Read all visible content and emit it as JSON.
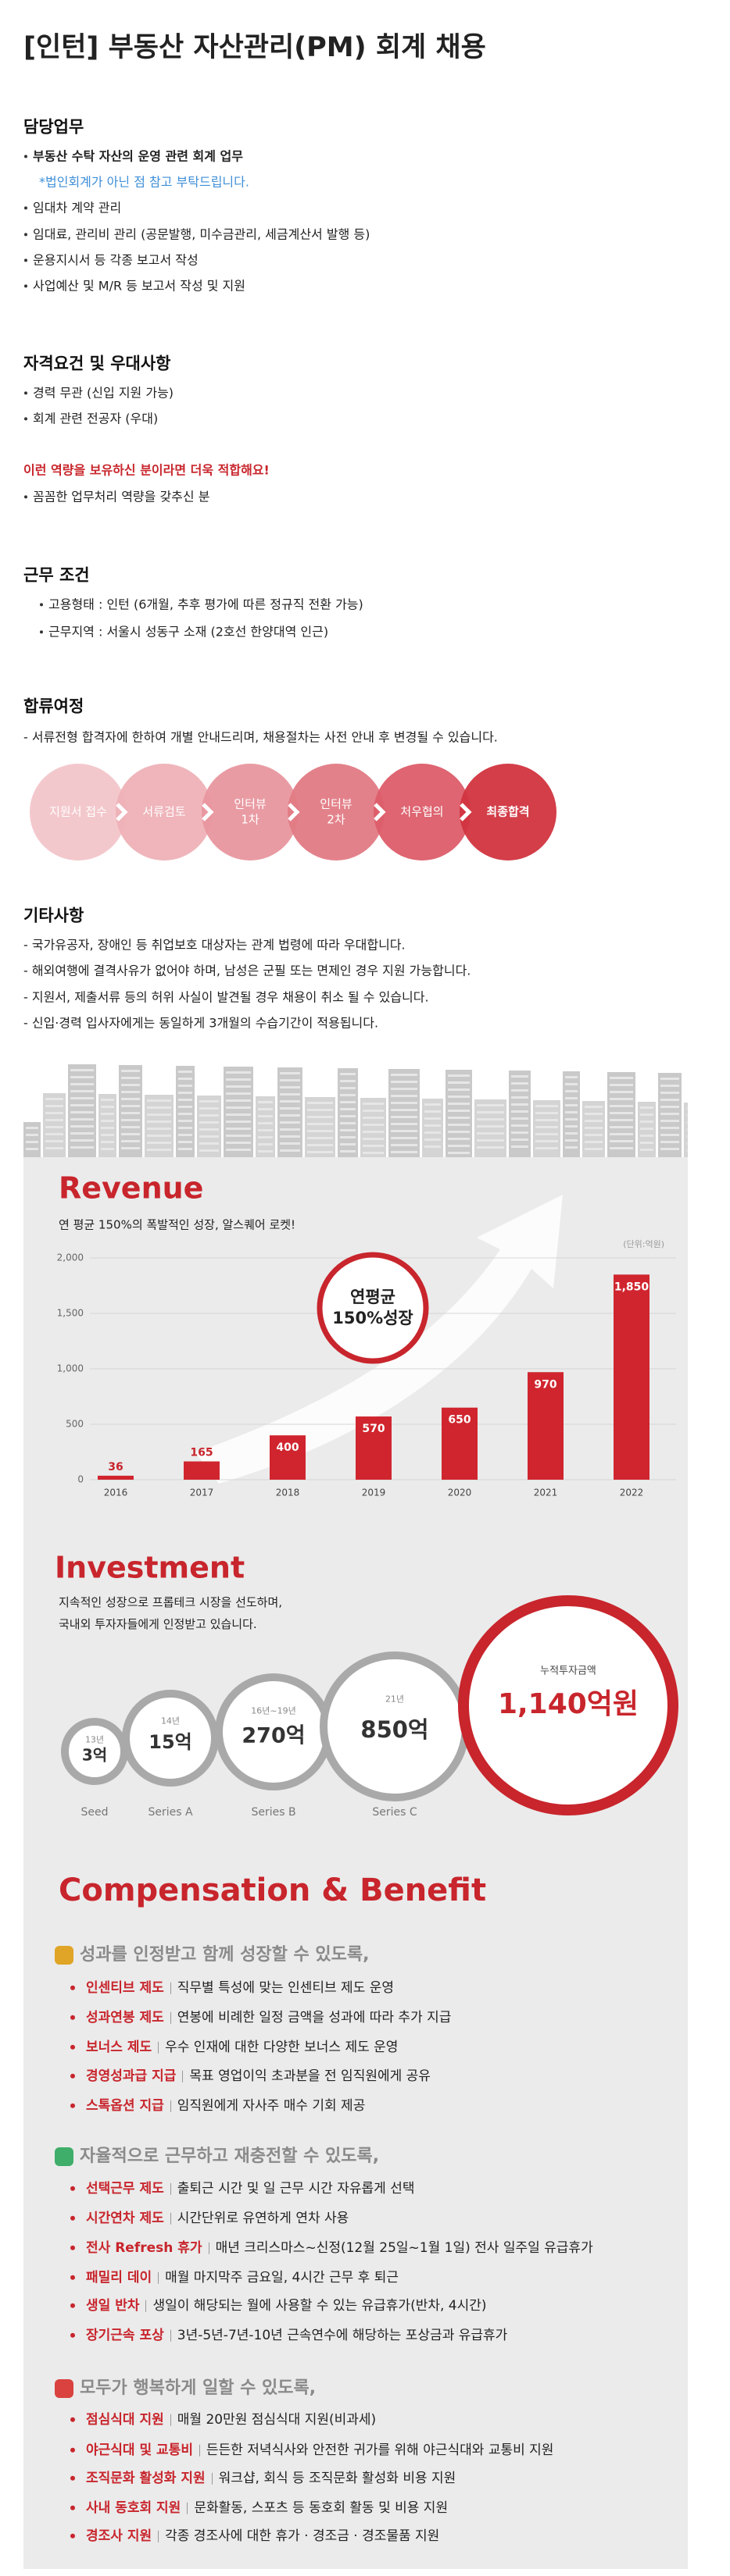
{
  "header": {
    "title": "[인턴] 부동산 자산관리(PM) 회계 채용"
  },
  "duties": {
    "heading": "담당업무",
    "lead": "부동산 수탁 자산의 운영 관련 회계 업무",
    "note": "*법인회계가 아닌 점 참고 부탁드립니다.",
    "items": [
      "임대차 계약 관리",
      "임대료, 관리비 관리 (공문발행, 미수금관리, 세금계산서 발행 등)",
      "운용지시서 등 각종 보고서 작성",
      "사업예산 및 M/R 등 보고서 작성 및 지원"
    ]
  },
  "qualifications": {
    "heading": "자격요건 및 우대사항",
    "items": [
      "경력 무관 (신입 지원 가능)",
      "회계 관련 전공자 (우대)"
    ],
    "highlight": "이런 역량을 보유하신 분이라면 더욱 적합해요!",
    "extra": [
      "꼼꼼한 업무처리 역량을 갖추신 분"
    ]
  },
  "conditions": {
    "heading": "근무 조건",
    "items": [
      "고용형태 : 인턴 (6개월, 추후 평가에 따른 정규직 전환 가능)",
      "근무지역 : 서울시 성동구 소재 (2호선 한양대역 인근)"
    ]
  },
  "process": {
    "heading": "합류여정",
    "text": "- 서류전형 합격자에 한하여 개별 안내드리며, 채용절차는 사전 안내 후 변경될 수 있습니다.",
    "steps": [
      [
        "지원서 접수"
      ],
      [
        "서류검토"
      ],
      [
        "인터뷰",
        "1차"
      ],
      [
        "인터뷰",
        "2차"
      ],
      [
        "처우협의"
      ],
      [
        "최종합격"
      ]
    ]
  },
  "others": {
    "heading": "기타사항",
    "items": [
      "- 국가유공자, 장애인 등 취업보호 대상자는 관계 법령에 따라 우대합니다.",
      "- 해외여행에 결격사유가 없어야 하며, 남성은 군필 또는 면제인 경우 지원 가능합니다.",
      "- 지원서, 제출서류 등의 허위 사실이 발견될 경우 채용이 취소 될 수 있습니다.",
      "- 신입·경력 입사자에게는 동일하게 3개월의 수습기간이 적용됩니다."
    ]
  },
  "chart_data": {
    "type": "bar",
    "title": "Revenue",
    "subtitle": "연 평균 150%의 폭발적인 성장, 알스퀘어 로켓!",
    "unit": "(단위:억원)",
    "annotation": [
      "연평균",
      "150%성장"
    ],
    "categories": [
      "2016",
      "2017",
      "2018",
      "2019",
      "2020",
      "2021",
      "2022"
    ],
    "values": [
      36,
      165,
      400,
      570,
      650,
      970,
      1850
    ],
    "value_labels": [
      "36",
      "165",
      "400",
      "570",
      "650",
      "970",
      "1,850"
    ],
    "color": "#d0252e",
    "ylim": [
      0,
      2000
    ],
    "yticks": [
      0,
      500,
      {
        "value": 1000,
        "label": "1,000"
      },
      {
        "value": 1500,
        "label": "1,500"
      },
      {
        "value": 2000,
        "label": "2,000"
      }
    ],
    "grid": true
  },
  "investment": {
    "title": "Investment",
    "subtitle": [
      "지속적인 성장으로 프롭테크 시장을 선도하며,",
      "국내외 투자자들에게 인정받고 있습니다."
    ],
    "rounds": [
      {
        "year": "13년",
        "amount": "3억",
        "stage": "Seed"
      },
      {
        "year": "14년",
        "amount": "15억",
        "stage": "Series A"
      },
      {
        "year": "16년~19년",
        "amount": "270억",
        "stage": "Series B"
      },
      {
        "year": "21년",
        "amount": "850억",
        "stage": "Series C"
      }
    ],
    "total": {
      "label": "누적투자금액",
      "amount": "1,140억원"
    }
  },
  "compensation": {
    "title": "Compensation & Benefit",
    "groups": [
      {
        "heading": "성과를 인정받고 함께 성장할 수 있도록,",
        "items": [
          {
            "name": "인센티브 제도",
            "desc": "직무별 특성에 맞는 인센티브 제도 운영"
          },
          {
            "name": "성과연봉 제도",
            "desc": "연봉에 비례한 일정 금액을 성과에 따라 추가 지급"
          },
          {
            "name": "보너스 제도",
            "desc": "우수 인재에 대한 다양한 보너스 제도 운영"
          },
          {
            "name": "경영성과급 지급",
            "desc": "목표 영업이익 초과분을 전 임직원에게 공유"
          },
          {
            "name": "스톡옵션 지급",
            "desc": "임직원에게 자사주 매수 기회 제공"
          }
        ]
      },
      {
        "heading": "자율적으로 근무하고 재충전할 수 있도록,",
        "items": [
          {
            "name": "선택근무 제도",
            "desc": "출퇴근 시간 및 일 근무 시간 자유롭게 선택"
          },
          {
            "name": "시간연차 제도",
            "desc": "시간단위로 유연하게 연차 사용"
          },
          {
            "name": "전사 Refresh 휴가",
            "desc": "매년 크리스마스~신정(12월 25일~1월 1일) 전사 일주일 유급휴가"
          },
          {
            "name": "패밀리 데이",
            "desc": "매월 마지막주 금요일, 4시간 근무 후 퇴근"
          },
          {
            "name": "생일 반차",
            "desc": "생일이 해당되는 월에 사용할 수 있는 유급휴가(반차, 4시간)"
          },
          {
            "name": "장기근속 포상",
            "desc": "3년-5년-7년-10년 근속연수에 해당하는 포상금과 유급휴가"
          }
        ]
      },
      {
        "heading": "모두가 행복하게 일할 수 있도록,",
        "items": [
          {
            "name": "점심식대 지원",
            "desc": "매월 20만원 점심식대 지원(비과세)"
          },
          {
            "name": "야근식대 및 교통비",
            "desc": "든든한 저녁식사와 안전한 귀가를 위해 야근식대와 교통비 지원"
          },
          {
            "name": "조직문화 활성화 지원",
            "desc": "워크샵, 회식 등 조직문화 활성화 비용 지원"
          },
          {
            "name": "사내 동호회 지원",
            "desc": "문화활동, 스포츠 등 동호회 활동 및 비용 지원"
          },
          {
            "name": "경조사 지원",
            "desc": "각종 경조사에 대한 휴가 · 경조금 · 경조물품 지원"
          }
        ]
      }
    ]
  }
}
